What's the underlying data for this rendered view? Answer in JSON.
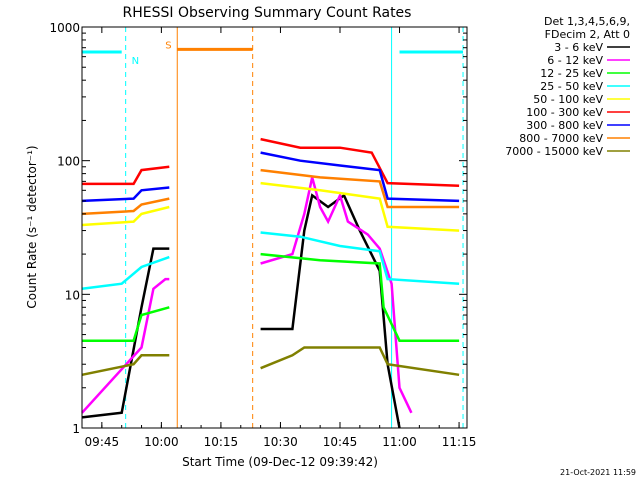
{
  "chart_data": {
    "type": "line",
    "title": "RHESSI Observing Summary Count Rates",
    "xlabel": "Start Time (09-Dec-12 09:39:42)",
    "ylabel": "Count Rate (s⁻¹ detector⁻¹)",
    "footer": "21-Oct-2021 11:59",
    "y_scale": "log",
    "ylim": [
      1,
      1000
    ],
    "xlim": [
      "09:40",
      "11:17"
    ],
    "x_ticks": [
      "09:45",
      "10:00",
      "10:15",
      "10:30",
      "10:45",
      "11:00",
      "11:15"
    ],
    "y_ticks": [
      "1",
      "10",
      "100",
      "1000"
    ],
    "legend_header": [
      "Det 1,3,4,5,6,9,",
      "FDecim 2, Att 0"
    ],
    "series": [
      {
        "name": "3 - 6 keV",
        "color": "#000000",
        "points": [
          [
            "09:40",
            1.2
          ],
          [
            "09:50",
            1.3
          ],
          [
            "09:55",
            8
          ],
          [
            "09:58",
            22
          ],
          [
            "10:02",
            22
          ],
          [
            "10:25",
            5.5
          ],
          [
            "10:33",
            5.5
          ],
          [
            "10:36",
            30
          ],
          [
            "10:38",
            55
          ],
          [
            "10:42",
            45
          ],
          [
            "10:46",
            55
          ],
          [
            "10:50",
            30
          ],
          [
            "10:55",
            15
          ],
          [
            "10:57",
            3
          ],
          [
            "11:00",
            1
          ]
        ]
      },
      {
        "name": "6 - 12 keV",
        "color": "#ff00ff",
        "points": [
          [
            "09:40",
            1.3
          ],
          [
            "09:55",
            4
          ],
          [
            "09:58",
            11
          ],
          [
            "10:01",
            13
          ],
          [
            "10:02",
            13
          ],
          [
            "10:25",
            17
          ],
          [
            "10:33",
            20
          ],
          [
            "10:36",
            40
          ],
          [
            "10:38",
            75
          ],
          [
            "10:40",
            45
          ],
          [
            "10:42",
            35
          ],
          [
            "10:45",
            55
          ],
          [
            "10:47",
            35
          ],
          [
            "10:52",
            28
          ],
          [
            "10:55",
            22
          ],
          [
            "10:58",
            12
          ],
          [
            "11:00",
            2
          ],
          [
            "11:03",
            1.3
          ]
        ]
      },
      {
        "name": "12 - 25 keV",
        "color": "#00ff00",
        "points": [
          [
            "09:40",
            4.5
          ],
          [
            "09:53",
            4.5
          ],
          [
            "09:55",
            7
          ],
          [
            "10:02",
            8
          ],
          [
            "10:25",
            20
          ],
          [
            "10:40",
            18
          ],
          [
            "10:55",
            17
          ],
          [
            "10:56",
            8
          ],
          [
            "11:00",
            4.5
          ],
          [
            "11:15",
            4.5
          ]
        ]
      },
      {
        "name": "25 - 50 keV",
        "color": "#00ffff",
        "points": [
          [
            "09:40",
            11
          ],
          [
            "09:50",
            12
          ],
          [
            "09:55",
            16
          ],
          [
            "10:02",
            19
          ],
          [
            "10:25",
            29
          ],
          [
            "10:35",
            27
          ],
          [
            "10:45",
            23
          ],
          [
            "10:55",
            21
          ],
          [
            "10:57",
            13
          ],
          [
            "11:15",
            12
          ]
        ]
      },
      {
        "name": "50 - 100 keV",
        "color": "#ffff00",
        "points": [
          [
            "09:40",
            33
          ],
          [
            "09:53",
            35
          ],
          [
            "09:55",
            40
          ],
          [
            "10:02",
            45
          ],
          [
            "10:25",
            68
          ],
          [
            "10:40",
            60
          ],
          [
            "10:55",
            52
          ],
          [
            "10:57",
            32
          ],
          [
            "11:15",
            30
          ]
        ]
      },
      {
        "name": "100 - 300 keV",
        "color": "#ff0000",
        "points": [
          [
            "09:40",
            67
          ],
          [
            "09:53",
            67
          ],
          [
            "09:55",
            85
          ],
          [
            "10:02",
            90
          ],
          [
            "10:25",
            145
          ],
          [
            "10:35",
            125
          ],
          [
            "10:45",
            125
          ],
          [
            "10:53",
            115
          ],
          [
            "10:57",
            68
          ],
          [
            "11:15",
            65
          ]
        ]
      },
      {
        "name": "300 - 800 keV",
        "color": "#0000ff",
        "points": [
          [
            "09:40",
            50
          ],
          [
            "09:53",
            52
          ],
          [
            "09:55",
            60
          ],
          [
            "10:02",
            63
          ],
          [
            "10:25",
            115
          ],
          [
            "10:35",
            100
          ],
          [
            "10:45",
            92
          ],
          [
            "10:55",
            85
          ],
          [
            "10:57",
            52
          ],
          [
            "11:15",
            50
          ]
        ]
      },
      {
        "name": "800 - 7000 keV",
        "color": "#ff8000",
        "points": [
          [
            "09:40",
            40
          ],
          [
            "09:53",
            42
          ],
          [
            "09:55",
            47
          ],
          [
            "10:02",
            52
          ],
          [
            "10:25",
            85
          ],
          [
            "10:40",
            75
          ],
          [
            "10:55",
            70
          ],
          [
            "10:57",
            45
          ],
          [
            "11:15",
            45
          ]
        ]
      },
      {
        "name": "7000 - 15000 keV",
        "color": "#808000",
        "points": [
          [
            "09:40",
            2.5
          ],
          [
            "09:53",
            3
          ],
          [
            "09:55",
            3.5
          ],
          [
            "10:02",
            3.5
          ],
          [
            "10:25",
            2.8
          ],
          [
            "10:33",
            3.5
          ],
          [
            "10:36",
            4
          ],
          [
            "10:55",
            4
          ],
          [
            "10:57",
            3
          ],
          [
            "11:15",
            2.5
          ]
        ]
      }
    ],
    "annotations": [
      {
        "label": "N",
        "color": "#00ffff",
        "intervals": [
          [
            "09:40",
            "09:50"
          ],
          [
            "11:00",
            "11:16"
          ]
        ],
        "level": 650,
        "boundaries": [
          "09:51",
          "11:16"
        ],
        "solid_boundaries": [
          "09:40",
          "10:58"
        ]
      },
      {
        "label": "S",
        "color": "#ff8000",
        "intervals": [
          [
            "10:04",
            "10:23"
          ]
        ],
        "level": 680,
        "boundaries": [
          "10:23"
        ],
        "solid_boundaries": [
          "10:04"
        ]
      }
    ],
    "data_gaps": [
      [
        "10:02",
        "10:25"
      ]
    ],
    "grid": false,
    "legend_position": "right"
  }
}
